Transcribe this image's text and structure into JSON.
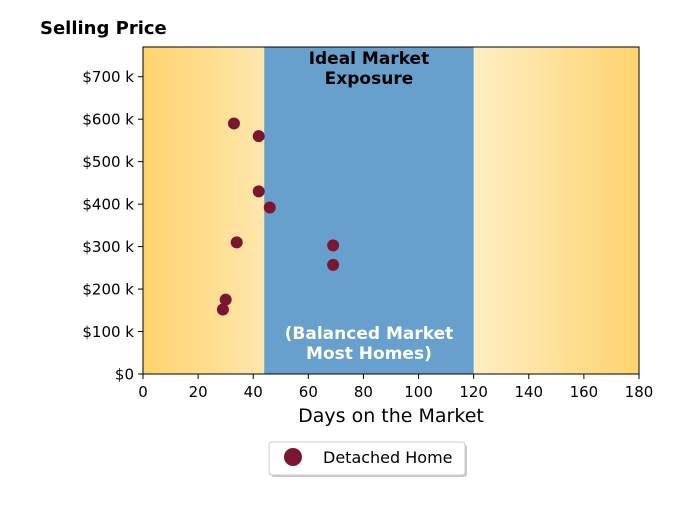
{
  "chart_data": {
    "type": "scatter",
    "title": "Selling Price",
    "xlabel": "Days on the Market",
    "ylabel": "",
    "xlim": [
      0,
      180
    ],
    "ylim": [
      0,
      770000
    ],
    "x_ticks": [
      0,
      20,
      40,
      60,
      80,
      100,
      120,
      140,
      160,
      180
    ],
    "x_tick_labels": [
      "0",
      "20",
      "40",
      "60",
      "80",
      "100",
      "120",
      "140",
      "160",
      "180"
    ],
    "y_ticks": [
      0,
      100000,
      200000,
      300000,
      400000,
      500000,
      600000,
      700000
    ],
    "y_tick_labels": [
      "$0",
      "$100 k",
      "$200 k",
      "$300 k",
      "$400 k",
      "$500 k",
      "$600 k",
      "$700 k"
    ],
    "grid": false,
    "ideal_range": [
      44,
      120
    ],
    "annotations": {
      "ideal_title_line1": "Ideal Market",
      "ideal_title_line2": "Exposure",
      "ideal_note_line1": "(Balanced Market",
      "ideal_note_line2": "Most Homes)"
    },
    "series": [
      {
        "name": "Detached Home",
        "color": "#7b1530",
        "points": [
          {
            "x": 33,
            "y": 590000
          },
          {
            "x": 42,
            "y": 560000
          },
          {
            "x": 42,
            "y": 430000
          },
          {
            "x": 46,
            "y": 392000
          },
          {
            "x": 34,
            "y": 310000
          },
          {
            "x": 69,
            "y": 303000
          },
          {
            "x": 69,
            "y": 257000
          },
          {
            "x": 30,
            "y": 175000
          },
          {
            "x": 29,
            "y": 152000
          }
        ]
      }
    ],
    "legend": {
      "placement": "bottom-center",
      "label": "Detached Home"
    },
    "colors": {
      "ideal_band": "#67a0cc",
      "gradient_edge": "#ffd36e",
      "gradient_center": "#fffbf0",
      "marker": "#7b1530"
    }
  }
}
